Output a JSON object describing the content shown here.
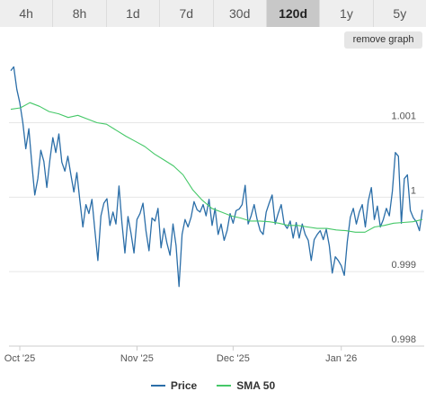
{
  "range_buttons": [
    {
      "label": "4h",
      "active": false
    },
    {
      "label": "8h",
      "active": false
    },
    {
      "label": "1d",
      "active": false
    },
    {
      "label": "7d",
      "active": false
    },
    {
      "label": "30d",
      "active": false
    },
    {
      "label": "120d",
      "active": true
    },
    {
      "label": "1y",
      "active": false
    },
    {
      "label": "5y",
      "active": false
    }
  ],
  "remove_graph_label": "remove graph",
  "colors": {
    "price": "#2b6ea8",
    "sma": "#45c868",
    "grid": "#e6e6e6",
    "axis": "#cccccc"
  },
  "chart_data": {
    "type": "line",
    "x_ticks": [
      "Oct '25",
      "Nov '25",
      "Dec '25",
      "Jan '26"
    ],
    "y_ticks": [
      "0.998",
      "0.999",
      "1",
      "1.001"
    ],
    "ylim": [
      0.998,
      1.0019
    ],
    "grid": true,
    "legend_position": "bottom",
    "series": [
      {
        "name": "Price",
        "values": [
          1.0017,
          1.00175,
          1.00145,
          1.00127,
          1.001,
          1.00065,
          1.00092,
          1.00045,
          1.00003,
          1.00025,
          1.00063,
          1.00048,
          1.00013,
          1.0005,
          1.0008,
          1.0006,
          1.00085,
          1.00047,
          1.00035,
          1.00055,
          1.0003,
          1.00007,
          1.00033,
          0.99995,
          0.9996,
          0.9999,
          0.99978,
          0.99997,
          0.99955,
          0.99915,
          0.99975,
          0.99992,
          0.99998,
          0.99962,
          0.9998,
          0.99964,
          1.00015,
          0.99965,
          0.99925,
          0.99974,
          0.99952,
          0.99925,
          0.9997,
          0.99978,
          0.99992,
          0.99955,
          0.99928,
          0.99972,
          0.99968,
          0.99985,
          0.99932,
          0.99958,
          0.99938,
          0.99922,
          0.99964,
          0.99935,
          0.9988,
          0.9995,
          0.9997,
          0.9996,
          0.99973,
          0.99994,
          0.99983,
          0.9998,
          0.9999,
          0.99975,
          0.99997,
          0.99962,
          0.99985,
          0.9995,
          0.99964,
          0.99942,
          0.99955,
          0.99978,
          0.99965,
          0.99982,
          0.99984,
          0.9999,
          1.00016,
          0.99964,
          0.99975,
          0.9999,
          0.9997,
          0.99955,
          0.9995,
          0.9998,
          0.99992,
          1.00003,
          0.99964,
          0.99978,
          0.9999,
          0.99964,
          0.99958,
          0.99968,
          0.99945,
          0.99966,
          0.99945,
          0.99964,
          0.9995,
          0.99942,
          0.99915,
          0.99943,
          0.9995,
          0.99955,
          0.99943,
          0.99957,
          0.99935,
          0.99898,
          0.9992,
          0.99915,
          0.99908,
          0.99895,
          0.9994,
          0.99973,
          0.99985,
          0.99964,
          0.9998,
          0.9999,
          0.9996,
          0.99995,
          1.00013,
          0.9997,
          0.99988,
          0.9996,
          0.9997,
          0.99985,
          0.99975,
          1.00008,
          1.0006,
          1.00055,
          0.99965,
          1.00025,
          1.0003,
          0.99982,
          0.99972,
          0.99967,
          0.99955,
          0.99983
        ],
        "color": "#2b6ea8"
      },
      {
        "name": "SMA 50",
        "values": [
          1.00118,
          1.0012,
          1.00127,
          1.00122,
          1.00115,
          1.00112,
          1.00107,
          1.0011,
          1.00105,
          1.001,
          1.00098,
          1.0009,
          1.00082,
          1.00075,
          1.00068,
          1.00058,
          1.0005,
          1.00042,
          1.0003,
          1.0001,
          0.99996,
          0.99985,
          0.9998,
          0.99975,
          0.99972,
          0.99968,
          0.99968,
          0.99967,
          0.99965,
          0.99962,
          0.99962,
          0.9996,
          0.99958,
          0.99958,
          0.99956,
          0.99955,
          0.99953,
          0.99953,
          0.9996,
          0.99962,
          0.99965,
          0.99966,
          0.99967,
          0.9997
        ],
        "color": "#45c868"
      }
    ]
  }
}
